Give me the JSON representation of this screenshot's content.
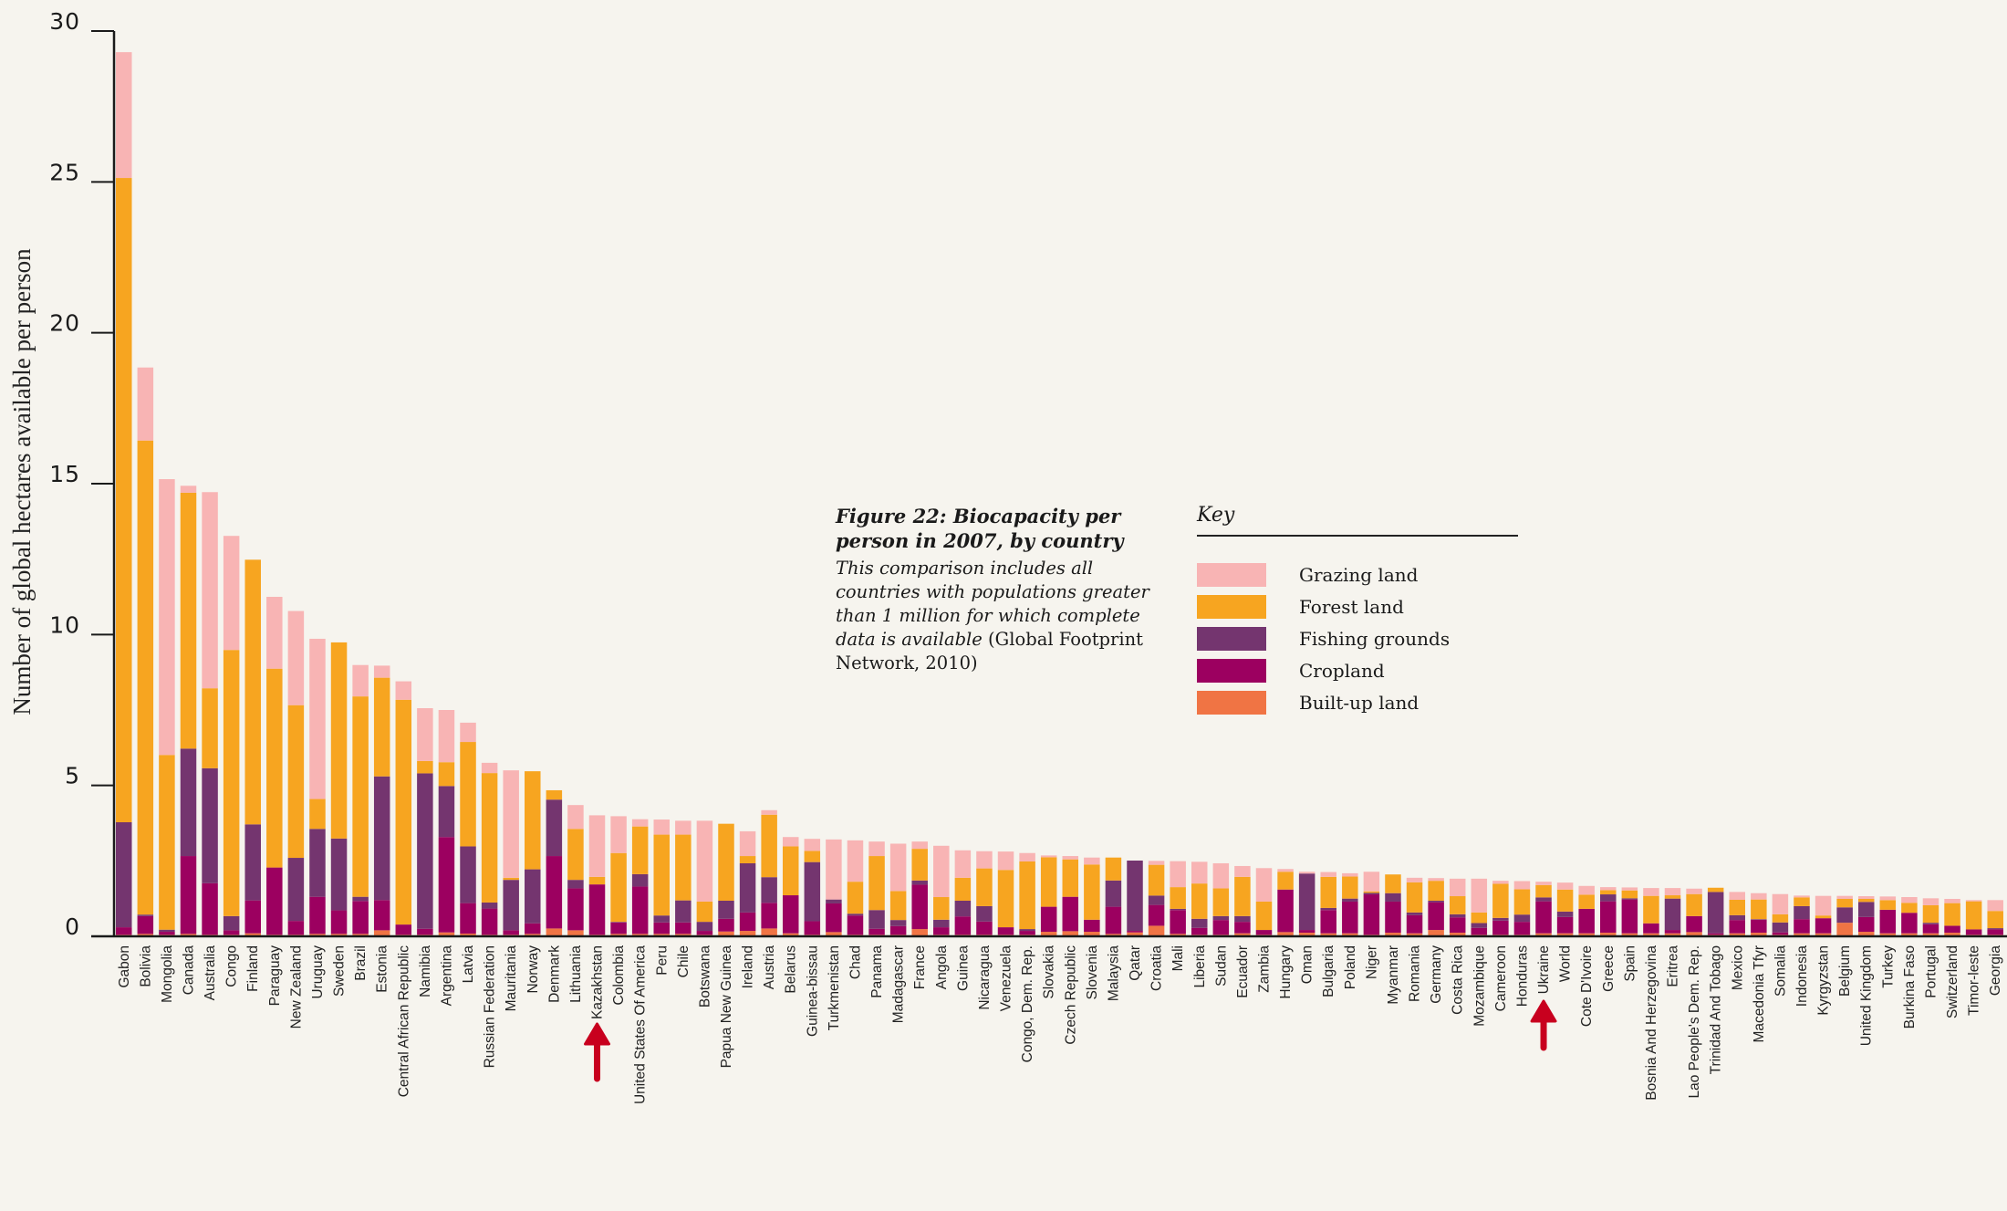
{
  "chart_data": {
    "type": "bar",
    "stacked": true,
    "title": "Figure 22: Biocapacity per person in 2007, by country",
    "subtitle": "This comparison includes all countries with populations greater than 1 million for which complete data is available",
    "source": "(Global Footprint Network, 2010)",
    "xlabel": "",
    "ylabel": "Number of global hectares available per person",
    "ylim": [
      0,
      30
    ],
    "yticks": [
      0,
      5,
      10,
      15,
      20,
      25,
      30
    ],
    "grid": false,
    "legend_title": "Key",
    "legend_position": "center-right",
    "series_order_bottom_to_top": [
      "Built-up land",
      "Cropland",
      "Fishing grounds",
      "Forest land",
      "Grazing land"
    ],
    "legend": [
      {
        "name": "Grazing land",
        "color": "#f8b4b4"
      },
      {
        "name": "Forest land",
        "color": "#f7a520"
      },
      {
        "name": "Fishing grounds",
        "color": "#74356f"
      },
      {
        "name": "Cropland",
        "color": "#9c0060"
      },
      {
        "name": "Built-up land",
        "color": "#f07444"
      }
    ],
    "highlighted_categories": [
      "Kazakhstan",
      "Ukraine"
    ],
    "categories": [
      "Gabon",
      "Bolivia",
      "Mongolia",
      "Canada",
      "Australia",
      "Congo",
      "Finland",
      "Paraguay",
      "New Zealand",
      "Uruguay",
      "Sweden",
      "Brazil",
      "Estonia",
      "Central African Republic",
      "Namibia",
      "Argentina",
      "Latvia",
      "Russian Federation",
      "Mauritania",
      "Norway",
      "Denmark",
      "Lithuania",
      "Kazakhstan",
      "Colombia",
      "United States Of America",
      "Peru",
      "Chile",
      "Botswana",
      "Papua New Guinea",
      "Ireland",
      "Austria",
      "Belarus",
      "Guinea-bissau",
      "Turkmenistan",
      "Chad",
      "Panama",
      "Madagascar",
      "France",
      "Angola",
      "Guinea",
      "Nicaragua",
      "Venezuela",
      "Congo, Dem. Rep.",
      "Slovakia",
      "Czech Republic",
      "Slovenia",
      "Malaysia",
      "Qatar",
      "Croatia",
      "Mali",
      "Liberia",
      "Sudan",
      "Ecuador",
      "Zambia",
      "Hungary",
      "Oman",
      "Bulgaria",
      "Poland",
      "Niger",
      "Myanmar",
      "Romania",
      "Germany",
      "Costa Rica",
      "Mozambique",
      "Cameroon",
      "Honduras",
      "Ukraine",
      "World",
      "Cote D'Ivoire",
      "Greece",
      "Spain",
      "Bosnia And Herzegovina",
      "Eritrea",
      "Lao People's Dem. Rep.",
      "Trinidad And Tobago",
      "Mexico",
      "Macedonia Tfyr",
      "Somalia",
      "Indonesia",
      "Kyrgyzstan",
      "Belgium",
      "United Kingdom",
      "Turkey",
      "Burkina Faso",
      "Portugal",
      "Switzerland",
      "Timor-leste",
      "Georgia"
    ],
    "series": [
      {
        "name": "Built-up land",
        "values": [
          0.05,
          0.08,
          0.05,
          0.08,
          0.05,
          0.05,
          0.1,
          0.05,
          0.05,
          0.08,
          0.08,
          0.08,
          0.2,
          0.05,
          0.05,
          0.13,
          0.09,
          0.05,
          0.05,
          0.08,
          0.26,
          0.2,
          0.05,
          0.08,
          0.08,
          0.08,
          0.08,
          0.05,
          0.16,
          0.18,
          0.26,
          0.1,
          0.05,
          0.14,
          0.05,
          0.05,
          0.05,
          0.24,
          0.05,
          0.05,
          0.05,
          0.05,
          0.05,
          0.15,
          0.17,
          0.15,
          0.08,
          0.13,
          0.35,
          0.08,
          0.05,
          0.05,
          0.1,
          0.05,
          0.14,
          0.12,
          0.1,
          0.1,
          0.05,
          0.12,
          0.1,
          0.21,
          0.12,
          0.05,
          0.05,
          0.05,
          0.1,
          0.1,
          0.1,
          0.12,
          0.1,
          0.1,
          0.1,
          0.14,
          0.05,
          0.1,
          0.12,
          0.05,
          0.1,
          0.1,
          0.45,
          0.15,
          0.1,
          0.1,
          0.1,
          0.12,
          0.05,
          0.05
        ]
      },
      {
        "name": "Cropland",
        "values": [
          0.25,
          0.59,
          0.1,
          2.58,
          1.71,
          0.15,
          1.09,
          2.23,
          0.46,
          1.23,
          0.78,
          1.09,
          1.0,
          0.34,
          0.2,
          3.16,
          1.01,
          0.87,
          0.15,
          0.35,
          2.4,
          1.39,
          1.67,
          0.38,
          1.57,
          0.38,
          0.38,
          0.13,
          0.42,
          0.61,
          0.85,
          1.26,
          0.45,
          0.95,
          0.64,
          0.2,
          0.29,
          1.47,
          0.25,
          0.61,
          0.44,
          0.25,
          0.13,
          0.83,
          1.14,
          0.4,
          0.9,
          0.05,
          0.69,
          0.79,
          0.23,
          0.49,
          0.38,
          0.16,
          1.41,
          0.09,
          0.77,
          1.05,
          1.34,
          1.03,
          0.6,
          0.92,
          0.51,
          0.23,
          0.47,
          0.43,
          1.06,
          0.54,
          0.81,
          1.04,
          1.12,
          0.33,
          0.11,
          0.53,
          0.05,
          0.44,
          0.43,
          0.08,
          0.47,
          0.5,
          0.0,
          0.49,
          0.78,
          0.68,
          0.3,
          0.23,
          0.18,
          0.18
        ]
      },
      {
        "name": "Fishing grounds",
        "values": [
          3.48,
          0.05,
          0.07,
          3.56,
          3.81,
          0.47,
          2.52,
          0.0,
          2.09,
          2.25,
          2.38,
          0.14,
          4.1,
          0.0,
          5.15,
          1.69,
          1.88,
          0.2,
          1.67,
          1.79,
          1.87,
          0.28,
          0.0,
          0.02,
          0.41,
          0.23,
          0.73,
          0.3,
          0.6,
          1.63,
          0.85,
          0.0,
          1.96,
          0.13,
          0.06,
          0.62,
          0.2,
          0.14,
          0.25,
          0.52,
          0.51,
          0.0,
          0.06,
          0.0,
          0.0,
          0.0,
          0.87,
          2.33,
          0.31,
          0.04,
          0.3,
          0.13,
          0.19,
          0.0,
          0.0,
          1.87,
          0.07,
          0.1,
          0.05,
          0.28,
          0.09,
          0.05,
          0.1,
          0.16,
          0.09,
          0.24,
          0.13,
          0.18,
          0.0,
          0.23,
          0.04,
          0.0,
          1.04,
          0.0,
          1.37,
          0.16,
          0.02,
          0.33,
          0.43,
          0.0,
          0.51,
          0.5,
          0.0,
          0.0,
          0.05,
          0.0,
          0.0,
          0.04
        ]
      },
      {
        "name": "Forest land",
        "values": [
          21.35,
          15.71,
          5.79,
          8.48,
          2.65,
          8.82,
          8.77,
          6.59,
          5.06,
          0.99,
          6.5,
          6.64,
          3.27,
          7.45,
          0.41,
          0.79,
          3.46,
          4.29,
          0.07,
          3.25,
          0.31,
          1.69,
          0.25,
          2.28,
          1.58,
          2.68,
          2.18,
          0.67,
          2.55,
          0.24,
          2.07,
          1.62,
          0.37,
          0.0,
          1.06,
          1.79,
          0.96,
          1.05,
          0.75,
          0.76,
          1.25,
          1.9,
          2.24,
          1.64,
          1.24,
          1.83,
          0.76,
          0.0,
          1.02,
          0.72,
          1.17,
          0.92,
          1.3,
          0.94,
          0.59,
          0.0,
          1.03,
          0.73,
          0.05,
          0.62,
          1.0,
          0.66,
          0.6,
          0.35,
          1.13,
          0.84,
          0.41,
          0.73,
          0.47,
          0.14,
          0.26,
          0.91,
          0.11,
          0.73,
          0.14,
          0.51,
          0.65,
          0.27,
          0.29,
          0.09,
          0.28,
          0.1,
          0.32,
          0.33,
          0.58,
          0.75,
          0.93,
          0.57
        ]
      },
      {
        "name": "Grazing land",
        "values": [
          4.17,
          2.42,
          9.14,
          0.23,
          6.5,
          3.78,
          0.0,
          2.38,
          3.12,
          5.31,
          0.0,
          1.04,
          0.4,
          0.61,
          1.75,
          1.73,
          0.64,
          0.34,
          3.56,
          0.0,
          0.0,
          0.79,
          2.04,
          1.22,
          0.24,
          0.5,
          0.46,
          2.68,
          0.0,
          0.82,
          0.15,
          0.31,
          0.4,
          1.99,
          1.37,
          0.48,
          1.57,
          0.24,
          1.7,
          0.91,
          0.57,
          0.61,
          0.28,
          0.06,
          0.11,
          0.23,
          0.0,
          0.0,
          0.13,
          0.86,
          0.72,
          0.83,
          0.36,
          1.11,
          0.09,
          0.06,
          0.16,
          0.11,
          0.65,
          0.0,
          0.15,
          0.09,
          0.58,
          1.12,
          0.1,
          0.27,
          0.11,
          0.23,
          0.29,
          0.1,
          0.1,
          0.26,
          0.24,
          0.18,
          0.0,
          0.26,
          0.21,
          0.67,
          0.06,
          0.65,
          0.1,
          0.09,
          0.12,
          0.19,
          0.23,
          0.14,
          0.04,
          0.36
        ]
      }
    ]
  }
}
